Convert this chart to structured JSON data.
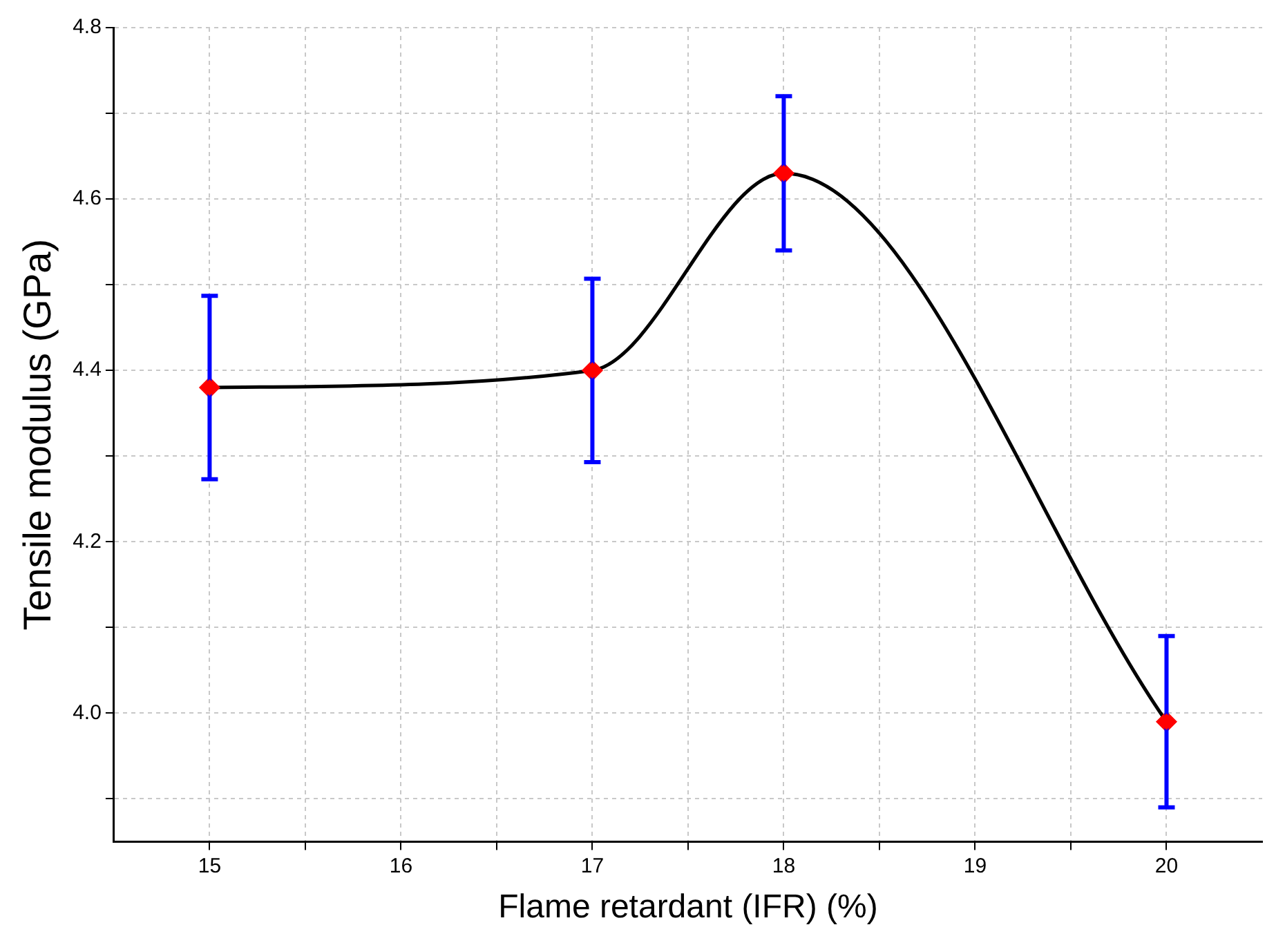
{
  "chart_data": {
    "type": "line",
    "xlabel": "Flame retardant (IFR) (%)",
    "ylabel": "Tensile modulus (GPa)",
    "x": [
      15,
      17,
      18,
      20
    ],
    "series": [
      {
        "color": "#000000",
        "values": [
          4.38,
          4.4,
          4.63,
          3.99
        ],
        "errors": [
          0.107,
          0.107,
          0.09,
          0.1
        ]
      }
    ],
    "xlim": [
      14.5,
      20.5
    ],
    "xticks": [
      15,
      {
        "value": 15.5,
        "label": null
      },
      16,
      {
        "value": 16.5,
        "label": null
      },
      17,
      {
        "value": 17.5,
        "label": null
      },
      18,
      {
        "value": 18.5,
        "label": null
      },
      19,
      {
        "value": 19.5,
        "label": null
      },
      20
    ],
    "ylim": [
      3.85,
      4.8
    ],
    "yticks": [
      {
        "value": 3.9,
        "label": null
      },
      {
        "value": 4.0,
        "label": "4.0"
      },
      {
        "value": 4.1,
        "label": null
      },
      {
        "value": 4.2,
        "label": "4.2"
      },
      {
        "value": 4.3,
        "label": null
      },
      {
        "value": 4.4,
        "label": "4.4"
      },
      {
        "value": 4.5,
        "label": null
      },
      {
        "value": 4.6,
        "label": "4.6"
      },
      {
        "value": 4.7,
        "label": null
      },
      {
        "value": 4.8,
        "label": "4.8"
      }
    ],
    "grid": true,
    "marker": "diamond",
    "line_style": "solid",
    "legend": false
  }
}
